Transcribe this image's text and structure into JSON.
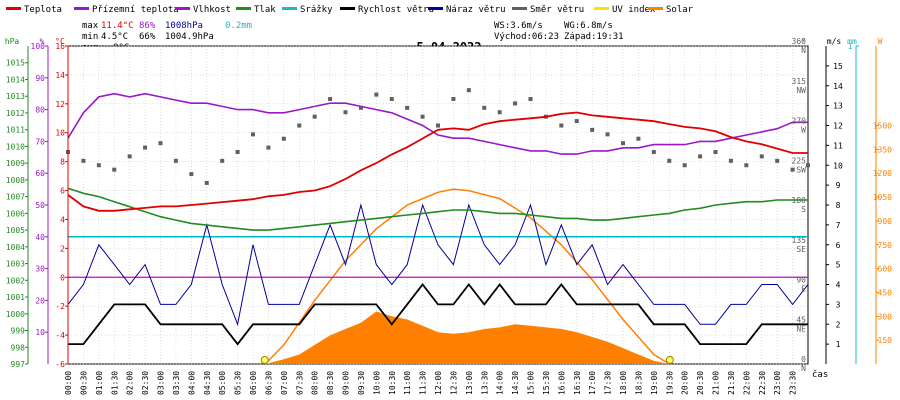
{
  "colors": {
    "background": "#ffffff",
    "plot_background": "#ffffff",
    "temperature": "#e00000",
    "apparent_temperature": "#9a18c8",
    "humidity": "#9a18c8",
    "pressure": "#228b22",
    "precipitation": "#1ab8c8",
    "wind_speed": "#000000",
    "wind_gust": "#00009a",
    "wind_direction": "#606060",
    "uv_index": "#ffe000",
    "solar": "#ff8000",
    "magenta_line": "#d000d0",
    "cyan_line": "#00b8c8",
    "grid": "#c0c0c0",
    "axis_hpa": "#228b22",
    "axis_pct": "#9a18c8",
    "axis_c": "#e00000",
    "axis_deg": "#606060",
    "axis_ms": "#000000",
    "axis_mm": "#1ab8c8",
    "axis_w": "#ff8000",
    "stats_max_min": "#e00000",
    "stats_humidity": "#9a18c8",
    "stats_pressure": "#00009a",
    "stats_precip": "#1ab8c8"
  },
  "legend": [
    {
      "label": "Teplota",
      "color": "#e00000"
    },
    {
      "label": "Přízemní teplota",
      "color": "#9a18c8"
    },
    {
      "label": "Vlhkost",
      "color": "#9a18c8"
    },
    {
      "label": "Tlak",
      "color": "#228b22"
    },
    {
      "label": "Srážky",
      "color": "#1ab8c8"
    },
    {
      "label": "Rychlost větru",
      "color": "#000000"
    },
    {
      "label": "Náraz větru",
      "color": "#00009a"
    },
    {
      "label": "Směr větru",
      "color": "#606060"
    },
    {
      "label": "UV index",
      "color": "#ffe000"
    },
    {
      "label": "Solar",
      "color": "#ff8000"
    }
  ],
  "stats": {
    "max_label": "max",
    "max_temp": "11.4°C",
    "max_humidity": "86%",
    "max_pressure": "1008hPa",
    "precip_total": "0.2mm",
    "min_label": "min",
    "min_temp": "4.5°C",
    "min_humidity": "66%",
    "min_pressure": "1004.9hPa",
    "avg_label": "avg",
    "avg_temp": "8°C",
    "ws": "WS:3.6m/s",
    "wg": "WG:6.8m/s",
    "sunrise": "Východ:06:23",
    "sunset": "Západ:19:31"
  },
  "chart_data": {
    "type": "line",
    "title": "5.04.2022",
    "xlabel": "čas",
    "x_ticks": [
      "00:00",
      "00:30",
      "01:00",
      "01:30",
      "02:00",
      "02:30",
      "03:00",
      "03:30",
      "04:00",
      "04:30",
      "05:00",
      "05:30",
      "06:00",
      "06:30",
      "07:00",
      "07:30",
      "08:00",
      "08:30",
      "09:00",
      "09:30",
      "10:00",
      "10:30",
      "11:00",
      "11:30",
      "12:00",
      "12:30",
      "13:00",
      "13:30",
      "14:00",
      "14:30",
      "15:00",
      "15:30",
      "16:00",
      "16:30",
      "17:00",
      "17:30",
      "18:00",
      "18:30",
      "19:00",
      "19:30",
      "20:00",
      "20:30",
      "21:00",
      "21:30",
      "22:00",
      "22:30",
      "23:00",
      "23:30"
    ],
    "x_range_hours": [
      0,
      24
    ],
    "axes": {
      "hpa": {
        "unit": "hPa",
        "range": [
          997,
          1016
        ],
        "ticks": [
          997,
          998,
          999,
          1000,
          1001,
          1002,
          1003,
          1004,
          1005,
          1006,
          1007,
          1008,
          1009,
          1010,
          1011,
          1012,
          1013,
          1014,
          1015
        ]
      },
      "pct": {
        "unit": "%",
        "range": [
          0,
          100
        ],
        "ticks": [
          10,
          20,
          30,
          40,
          50,
          60,
          70,
          80,
          90,
          100
        ]
      },
      "c": {
        "unit": "°C",
        "range": [
          -6,
          16
        ],
        "ticks": [
          -6,
          -4,
          -2,
          0,
          2,
          4,
          6,
          8,
          10,
          12,
          14,
          16
        ]
      },
      "deg": {
        "unit": "°",
        "range": [
          0,
          360
        ],
        "ticks": [
          0,
          45,
          90,
          135,
          180,
          225,
          270,
          315,
          360
        ],
        "tick_labels": [
          "0",
          "45",
          "90",
          "135",
          "180",
          "225",
          "270",
          "315",
          "360"
        ],
        "dir_labels": [
          "N",
          "NE",
          "E",
          "SE",
          "S",
          "SW",
          "W",
          "NW",
          "N"
        ]
      },
      "ms": {
        "unit": "m/s",
        "range": [
          0,
          16
        ],
        "ticks": [
          1,
          2,
          3,
          4,
          5,
          6,
          7,
          8,
          9,
          10,
          11,
          12,
          13,
          14,
          15
        ]
      },
      "mm": {
        "unit": "mm",
        "range": [
          0,
          1.0
        ],
        "ticks": [
          1
        ]
      },
      "w": {
        "unit": "W",
        "range": [
          0,
          2000
        ],
        "ticks": [
          150,
          300,
          450,
          600,
          750,
          900,
          1050,
          1200,
          1350,
          1500
        ]
      }
    },
    "reference_lines": {
      "magenta_c": 0,
      "cyan_mm": 0.4
    },
    "sun_markers_h": [
      6.38,
      19.52
    ],
    "series": [
      {
        "name": "Teplota",
        "axis": "c",
        "x": [
          0,
          0.5,
          1,
          1.5,
          2,
          2.5,
          3,
          3.5,
          4,
          4.5,
          5,
          5.5,
          6,
          6.5,
          7,
          7.5,
          8,
          8.5,
          9,
          9.5,
          10,
          10.5,
          11,
          11.5,
          12,
          12.5,
          13,
          13.5,
          14,
          14.5,
          15,
          15.5,
          16,
          16.5,
          17,
          17.5,
          18,
          18.5,
          19,
          19.5,
          20,
          20.5,
          21,
          21.5,
          22,
          22.5,
          23,
          23.5,
          24
        ],
        "y": [
          5.7,
          4.9,
          4.6,
          4.6,
          4.7,
          4.8,
          4.9,
          4.9,
          5.0,
          5.1,
          5.2,
          5.3,
          5.4,
          5.6,
          5.7,
          5.9,
          6.0,
          6.3,
          6.8,
          7.4,
          7.9,
          8.5,
          9.0,
          9.6,
          10.2,
          10.3,
          10.2,
          10.6,
          10.8,
          10.9,
          11.0,
          11.1,
          11.3,
          11.4,
          11.2,
          11.1,
          11.0,
          10.9,
          10.8,
          10.6,
          10.4,
          10.3,
          10.1,
          9.7,
          9.4,
          9.2,
          8.9,
          8.6,
          8.6
        ]
      },
      {
        "name": "Vlhkost",
        "axis": "pct",
        "x": [
          0,
          0.5,
          1,
          1.5,
          2,
          2.5,
          3,
          3.5,
          4,
          4.5,
          5,
          5.5,
          6,
          6.5,
          7,
          7.5,
          8,
          8.5,
          9,
          9.5,
          10,
          10.5,
          11,
          11.5,
          12,
          12.5,
          13,
          13.5,
          14,
          14.5,
          15,
          15.5,
          16,
          16.5,
          17,
          17.5,
          18,
          18.5,
          19,
          19.5,
          20,
          20.5,
          21,
          21.5,
          22,
          22.5,
          23,
          23.5,
          24
        ],
        "y": [
          71,
          79,
          84,
          85,
          84,
          85,
          84,
          83,
          82,
          82,
          81,
          80,
          80,
          79,
          79,
          80,
          81,
          82,
          82,
          81,
          80,
          79,
          77,
          75,
          72,
          71,
          71,
          70,
          69,
          68,
          67,
          67,
          66,
          66,
          67,
          67,
          68,
          68,
          69,
          69,
          69,
          70,
          70,
          71,
          72,
          73,
          74,
          76,
          76
        ]
      },
      {
        "name": "Tlak",
        "axis": "hpa",
        "x": [
          0,
          0.5,
          1,
          1.5,
          2,
          2.5,
          3,
          3.5,
          4,
          4.5,
          5,
          5.5,
          6,
          6.5,
          7,
          7.5,
          8,
          8.5,
          9,
          9.5,
          10,
          10.5,
          11,
          11.5,
          12,
          12.5,
          13,
          13.5,
          14,
          14.5,
          15,
          15.5,
          16,
          16.5,
          17,
          17.5,
          18,
          18.5,
          19,
          19.5,
          20,
          20.5,
          21,
          21.5,
          22,
          22.5,
          23,
          23.5,
          24
        ],
        "y": [
          1007.5,
          1007.2,
          1007.0,
          1006.7,
          1006.4,
          1006.1,
          1005.8,
          1005.6,
          1005.4,
          1005.3,
          1005.2,
          1005.1,
          1005.0,
          1005.0,
          1005.1,
          1005.2,
          1005.3,
          1005.4,
          1005.5,
          1005.6,
          1005.7,
          1005.8,
          1005.9,
          1006.0,
          1006.1,
          1006.2,
          1006.2,
          1006.1,
          1006.0,
          1006.0,
          1005.9,
          1005.8,
          1005.7,
          1005.7,
          1005.6,
          1005.6,
          1005.7,
          1005.8,
          1005.9,
          1006.0,
          1006.2,
          1006.3,
          1006.5,
          1006.6,
          1006.7,
          1006.7,
          1006.8,
          1006.8,
          1006.8
        ]
      },
      {
        "name": "Rychlost větru",
        "axis": "ms",
        "x": [
          0,
          0.5,
          1,
          1.5,
          2,
          2.5,
          3,
          3.5,
          4,
          4.5,
          5,
          5.5,
          6,
          6.5,
          7,
          7.5,
          8,
          8.5,
          9,
          9.5,
          10,
          10.5,
          11,
          11.5,
          12,
          12.5,
          13,
          13.5,
          14,
          14.5,
          15,
          15.5,
          16,
          16.5,
          17,
          17.5,
          18,
          18.5,
          19,
          19.5,
          20,
          20.5,
          21,
          21.5,
          22,
          22.5,
          23,
          23.5,
          24
        ],
        "y": [
          1,
          1,
          2,
          3,
          3,
          3,
          2,
          2,
          2,
          2,
          2,
          1,
          2,
          2,
          2,
          2,
          3,
          3,
          3,
          3,
          3,
          2,
          3,
          4,
          3,
          3,
          4,
          3,
          4,
          3,
          3,
          3,
          4,
          3,
          3,
          3,
          3,
          3,
          2,
          2,
          2,
          1,
          1,
          1,
          1,
          2,
          2,
          2,
          2
        ]
      },
      {
        "name": "Náraz větru",
        "axis": "ms",
        "x": [
          0,
          0.5,
          1,
          1.5,
          2,
          2.5,
          3,
          3.5,
          4,
          4.5,
          5,
          5.5,
          6,
          6.5,
          7,
          7.5,
          8,
          8.5,
          9,
          9.5,
          10,
          10.5,
          11,
          11.5,
          12,
          12.5,
          13,
          13.5,
          14,
          14.5,
          15,
          15.5,
          16,
          16.5,
          17,
          17.5,
          18,
          18.5,
          19,
          19.5,
          20,
          20.5,
          21,
          21.5,
          22,
          22.5,
          23,
          23.5,
          24
        ],
        "y": [
          3,
          4,
          6,
          5,
          4,
          5,
          3,
          3,
          4,
          7,
          4,
          2,
          6,
          3,
          3,
          3,
          5,
          7,
          5,
          8,
          5,
          4,
          5,
          8,
          6,
          5,
          8,
          6,
          5,
          6,
          8,
          5,
          7,
          5,
          6,
          4,
          5,
          4,
          3,
          3,
          3,
          2,
          2,
          3,
          3,
          4,
          4,
          3,
          4
        ]
      },
      {
        "name": "Směr větru",
        "axis": "deg",
        "x": [
          0,
          0.5,
          1,
          1.5,
          2,
          2.5,
          3,
          3.5,
          4,
          4.5,
          5,
          5.5,
          6,
          6.5,
          7,
          7.5,
          8,
          8.5,
          9,
          9.5,
          10,
          10.5,
          11,
          11.5,
          12,
          12.5,
          13,
          13.5,
          14,
          14.5,
          15,
          15.5,
          16,
          16.5,
          17,
          17.5,
          18,
          18.5,
          19,
          19.5,
          20,
          20.5,
          21,
          21.5,
          22,
          22.5,
          23,
          23.5,
          24
        ],
        "y": [
          240,
          230,
          225,
          220,
          235,
          245,
          250,
          230,
          215,
          205,
          230,
          240,
          260,
          245,
          255,
          270,
          280,
          300,
          285,
          290,
          305,
          300,
          290,
          280,
          270,
          300,
          310,
          290,
          285,
          295,
          300,
          280,
          270,
          275,
          265,
          260,
          250,
          255,
          240,
          230,
          225,
          235,
          240,
          230,
          225,
          235,
          230,
          220,
          225
        ]
      },
      {
        "name": "Solar",
        "axis": "w",
        "x": [
          6.4,
          7,
          7.5,
          8,
          8.5,
          9,
          9.5,
          10,
          10.5,
          11,
          11.5,
          12,
          12.5,
          13,
          13.5,
          14,
          14.5,
          15,
          15.5,
          16,
          16.5,
          17,
          17.5,
          18,
          18.5,
          19,
          19.5
        ],
        "y": [
          0,
          30,
          60,
          120,
          180,
          220,
          260,
          330,
          300,
          280,
          240,
          200,
          190,
          200,
          220,
          230,
          250,
          240,
          230,
          220,
          200,
          170,
          140,
          100,
          60,
          20,
          0
        ]
      },
      {
        "name": "Solar max",
        "axis": "w",
        "x": [
          6.4,
          7,
          8,
          9,
          10,
          11,
          12,
          12.5,
          13,
          14,
          15,
          16,
          17,
          18,
          19,
          19.5
        ],
        "y": [
          0,
          120,
          400,
          650,
          850,
          1000,
          1080,
          1100,
          1090,
          1040,
          920,
          750,
          530,
          280,
          60,
          0
        ]
      }
    ]
  }
}
